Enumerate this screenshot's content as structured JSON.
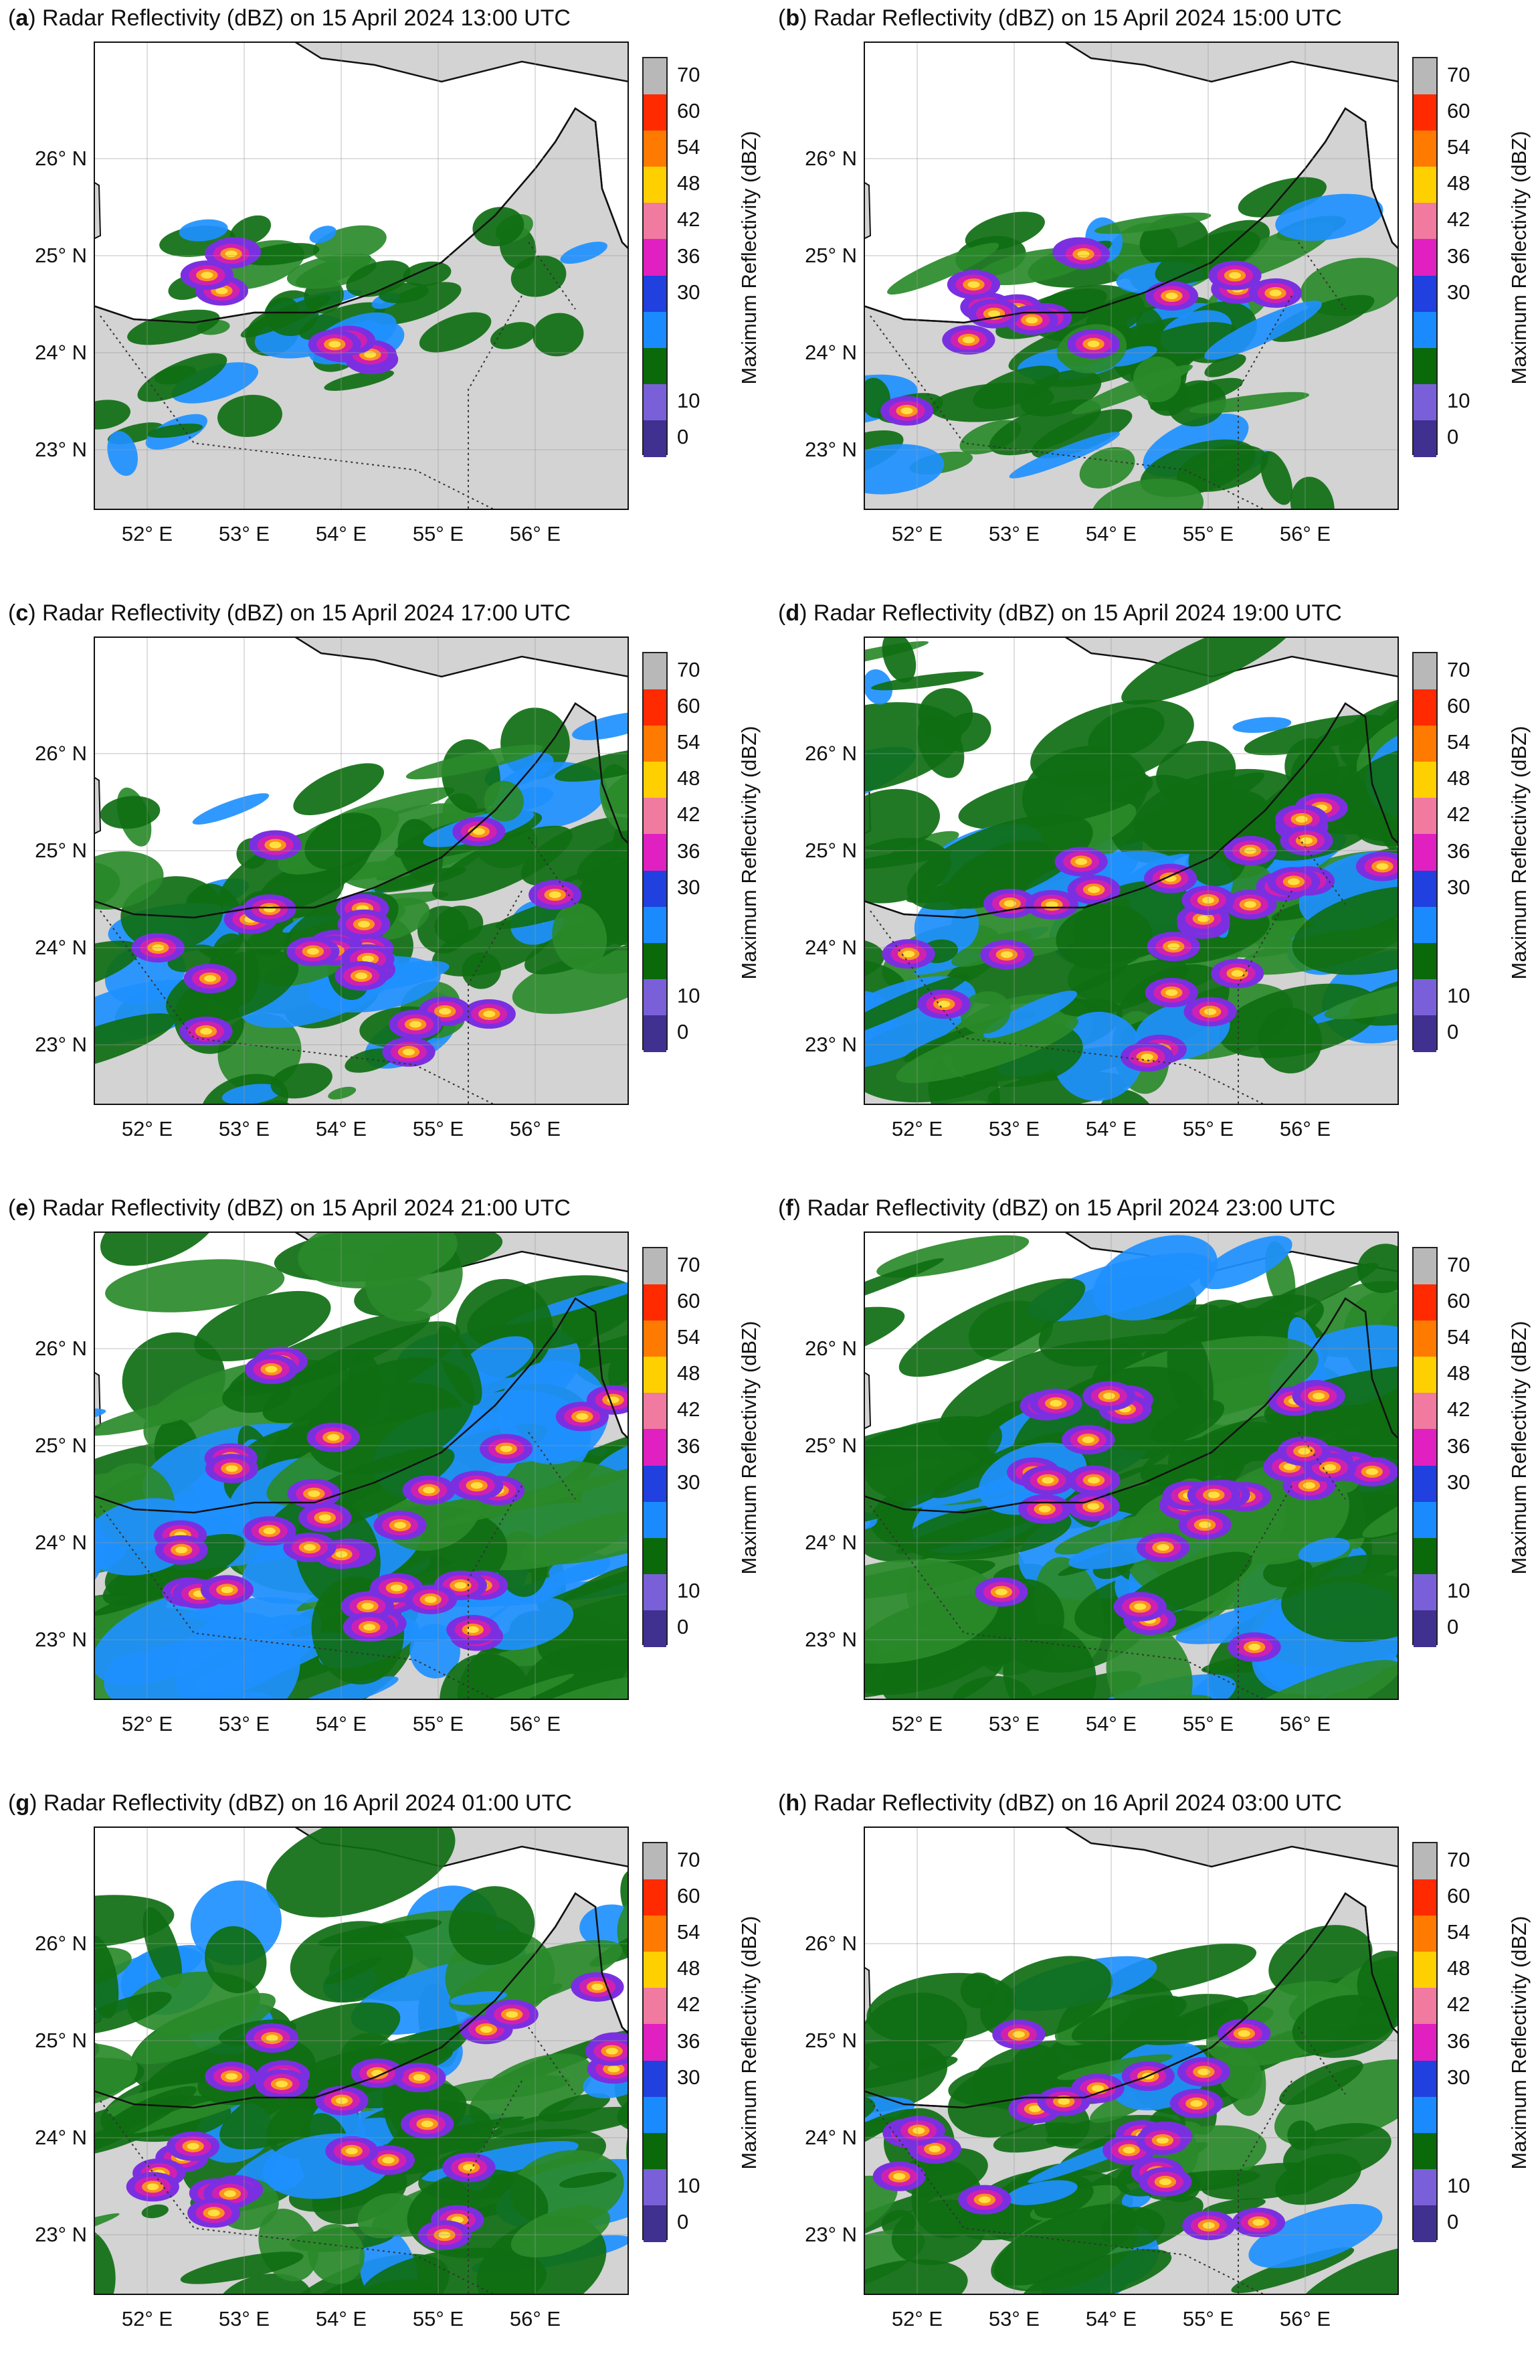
{
  "panels": [
    {
      "letter": "a",
      "title_rest": "Radar Reflectivity (dBZ) on 15 April 2024 13:00 UTC",
      "intensity": 1
    },
    {
      "letter": "b",
      "title_rest": "Radar Reflectivity (dBZ) on 15 April 2024 15:00 UTC",
      "intensity": 2
    },
    {
      "letter": "c",
      "title_rest": "Radar Reflectivity (dBZ) on 15 April 2024 17:00 UTC",
      "intensity": 3
    },
    {
      "letter": "d",
      "title_rest": "Radar Reflectivity (dBZ) on 15 April 2024 19:00 UTC",
      "intensity": 4
    },
    {
      "letter": "e",
      "title_rest": "Radar Reflectivity (dBZ) on 15 April 2024 21:00 UTC",
      "intensity": 5
    },
    {
      "letter": "f",
      "title_rest": "Radar Reflectivity (dBZ) on 15 April 2024 23:00 UTC",
      "intensity": 5
    },
    {
      "letter": "g",
      "title_rest": "Radar Reflectivity (dBZ) on 16 April 2024 01:00 UTC",
      "intensity": 4
    },
    {
      "letter": "h",
      "title_rest": "Radar Reflectivity (dBZ) on 16 April 2024 03:00 UTC",
      "intensity": 3
    }
  ],
  "lat_labels": [
    "26° N",
    "25° N",
    "24° N",
    "23° N"
  ],
  "lon_labels": [
    "52° E",
    "53° E",
    "54° E",
    "55° E",
    "56° E"
  ],
  "colorbar": {
    "title": "Maximum Reflectivity (dBZ)",
    "tick_labels": [
      "70",
      "60",
      "54",
      "48",
      "42",
      "36",
      "30",
      "10",
      "0"
    ],
    "colors": [
      "#d0d0d0",
      "#e0e0e0",
      "#ff3010",
      "#ff6a00",
      "#ffa030",
      "#ffd020",
      "#ffee60",
      "#f08a40",
      "#e05090",
      "#c030d0",
      "#8a2be2",
      "#3050e0",
      "#1e90ff",
      "#0a6a0a",
      "#1a7a1a",
      "#7050d0",
      "#4a3aa0"
    ],
    "land_color": "#d4d4d4",
    "sea_color": "#ffffff"
  }
}
